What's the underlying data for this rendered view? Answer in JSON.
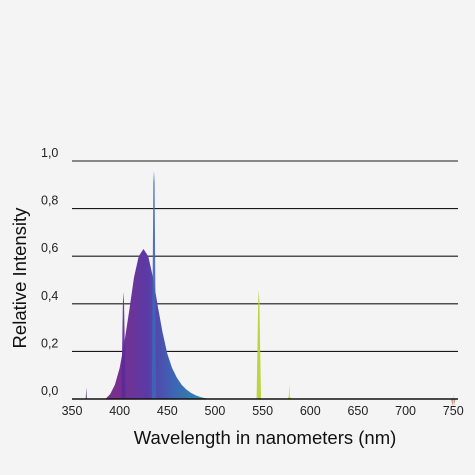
{
  "chart_data": {
    "type": "area",
    "xlabel": "Wavelength in nanometers (nm)",
    "ylabel": "Relative  Intensity",
    "xlim": [
      350,
      755
    ],
    "ylim": [
      0.0,
      1.0
    ],
    "x_ticks": [
      "350",
      "400",
      "450",
      "500",
      "550",
      "600",
      "650",
      "700",
      "750"
    ],
    "y_ticks": [
      "0,0",
      "0,2",
      "0,4",
      "0,6",
      "0,8",
      "1,0"
    ],
    "grid": "horizontal",
    "main_band": {
      "x": [
        385,
        390,
        395,
        400,
        405,
        410,
        415,
        420,
        425,
        430,
        435,
        440,
        445,
        450,
        455,
        460,
        465,
        470,
        475,
        480,
        485,
        490,
        495
      ],
      "y": [
        0.0,
        0.02,
        0.06,
        0.13,
        0.24,
        0.37,
        0.51,
        0.6,
        0.63,
        0.6,
        0.51,
        0.39,
        0.28,
        0.19,
        0.13,
        0.09,
        0.06,
        0.04,
        0.025,
        0.015,
        0.008,
        0.003,
        0.0
      ]
    },
    "emission_lines": [
      {
        "x": 365,
        "y": 0.05,
        "color": "#5a2a6e"
      },
      {
        "x": 404,
        "y": 0.45,
        "color": "#5b2a9a"
      },
      {
        "x": 436,
        "y": 0.96,
        "color": "#3d66b8"
      },
      {
        "x": 546,
        "y": 0.46,
        "color": "#b6d02a"
      },
      {
        "x": 578,
        "y": 0.06,
        "color": "#d4cf2a"
      },
      {
        "x": 750,
        "y": 0.02,
        "color": "#c08a6e"
      }
    ]
  }
}
